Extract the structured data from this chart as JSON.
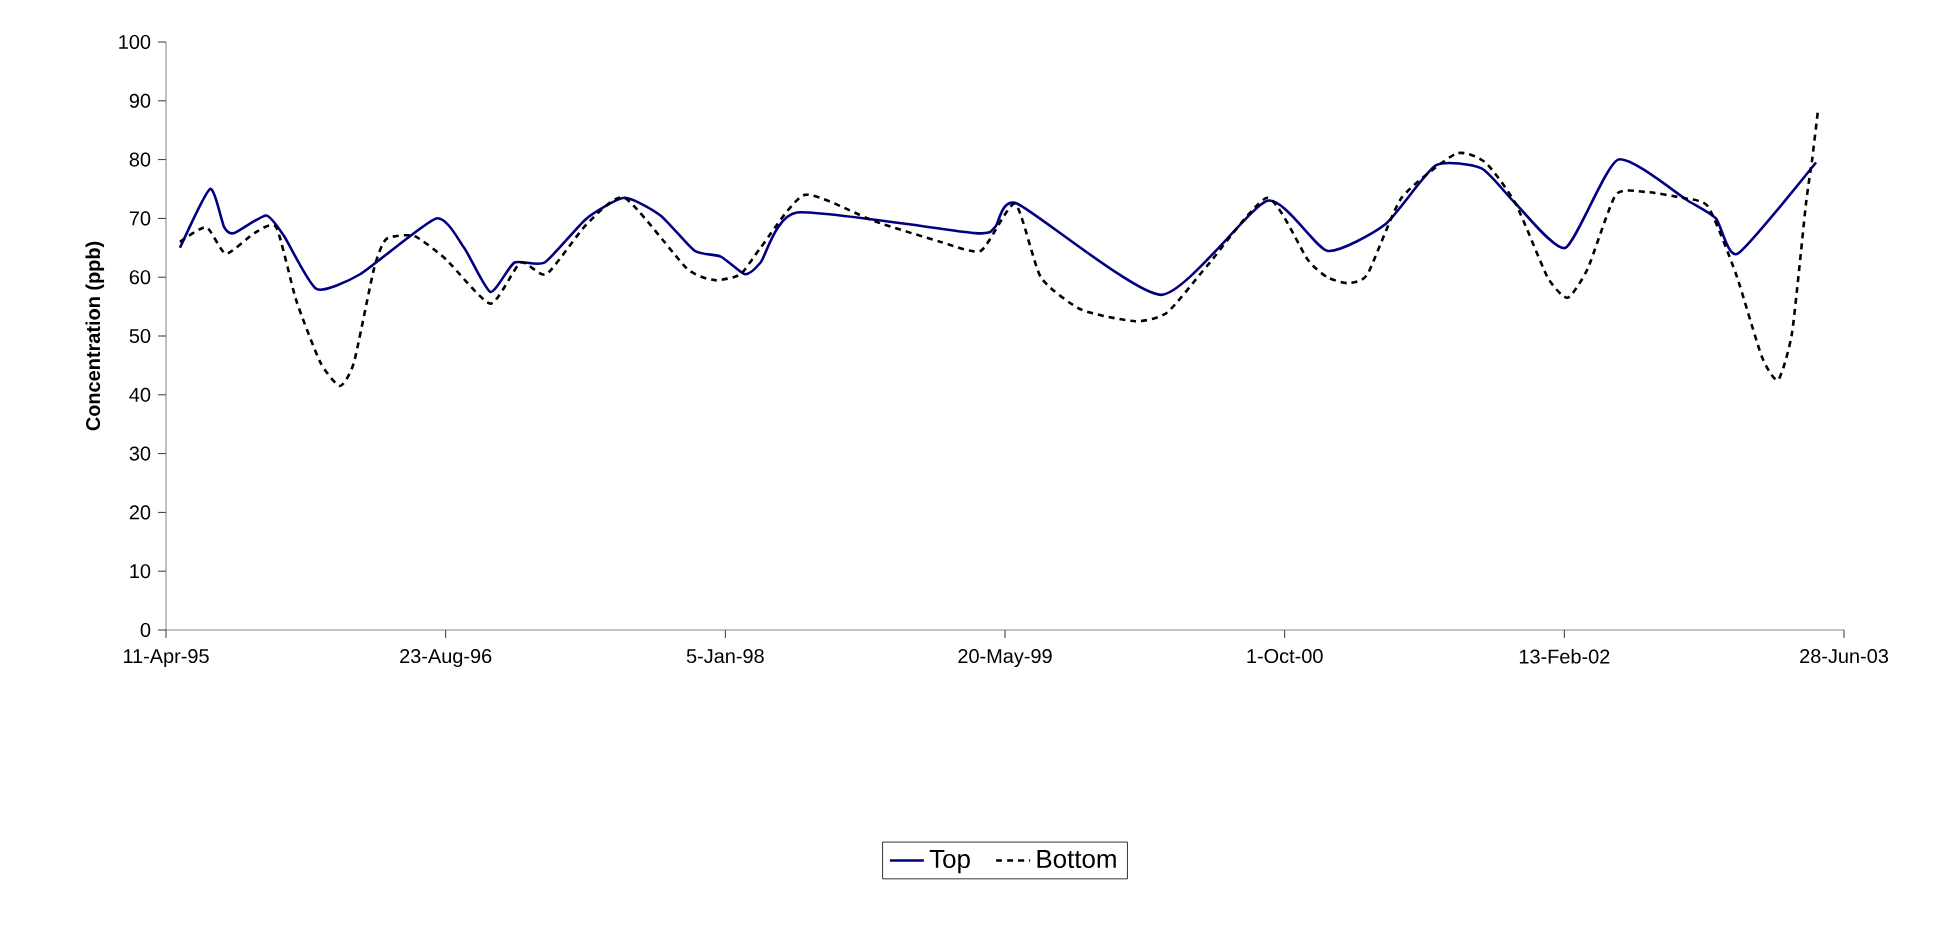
{
  "chart_data": {
    "type": "line",
    "ylabel": "Concentration (ppb)",
    "xlim": [
      "1995-04-11",
      "2003-06-28"
    ],
    "xticks": [
      {
        "value": "1995-04-11",
        "label": "11-Apr-95"
      },
      {
        "value": "1996-08-23",
        "label": "23-Aug-96"
      },
      {
        "value": "1998-01-05",
        "label": "5-Jan-98"
      },
      {
        "value": "1999-05-20",
        "label": "20-May-99"
      },
      {
        "value": "2000-10-01",
        "label": "1-Oct-00"
      },
      {
        "value": "2002-02-13",
        "label": "13-Feb-02"
      },
      {
        "value": "2003-06-28",
        "label": "28-Jun-03"
      }
    ],
    "ylim": [
      0,
      100
    ],
    "yticks": [
      0,
      10,
      20,
      30,
      40,
      50,
      60,
      70,
      80,
      90,
      100
    ],
    "grid": false,
    "legend": "bottom",
    "marker": "none",
    "series": [
      {
        "name": "Top",
        "color": "#000080",
        "line_style": "solid",
        "x": [
          "1995-05-06",
          "1995-06-29",
          "1995-07-24",
          "1995-08-11",
          "1995-10-07",
          "1995-11-08",
          "1996-01-05",
          "1996-03-23",
          "1996-08-06",
          "1996-09-25",
          "1996-11-11",
          "1996-12-24",
          "1997-02-16",
          "1997-05-02",
          "1997-07-09",
          "1997-09-11",
          "1997-11-11",
          "1997-12-28",
          "1998-02-09",
          "1998-03-09",
          "1998-05-13",
          "1999-03-27",
          "1999-05-02",
          "1999-06-11",
          "2000-02-23",
          "2000-08-31",
          "2000-12-16",
          "2001-03-30",
          "2001-06-28",
          "2001-09-18",
          "2001-11-18",
          "2002-02-15",
          "2002-05-20",
          "2002-09-22",
          "2002-11-11",
          "2002-12-20",
          "2003-05-09"
        ],
        "values": [
          65,
          75,
          68.5,
          67.5,
          70.5,
          67,
          58,
          60.5,
          70,
          65,
          57.5,
          62.5,
          62.5,
          70,
          73.5,
          70.5,
          64.5,
          63.5,
          60.5,
          62.5,
          71,
          67.5,
          68.5,
          72.5,
          57,
          73,
          64.5,
          69,
          79,
          78.5,
          72.5,
          65,
          80,
          73,
          70,
          64,
          79.5
        ]
      },
      {
        "name": "Bottom",
        "color": "#000000",
        "line_style": "dashed",
        "x": [
          "1995-05-06",
          "1995-06-22",
          "1995-07-27",
          "1995-09-16",
          "1995-10-25",
          "1995-11-30",
          "1996-01-12",
          "1996-02-16",
          "1996-03-12",
          "1996-04-17",
          "1996-05-09",
          "1996-06-28",
          "1996-08-24",
          "1996-11-11",
          "1997-01-04",
          "1997-02-19",
          "1997-05-02",
          "1997-07-09",
          "1997-10-28",
          "1997-12-17",
          "1998-02-01",
          "1998-03-09",
          "1998-05-27",
          "1998-09-29",
          "1999-01-25",
          "1999-04-07",
          "1999-06-07",
          "1999-07-23",
          "1999-10-03",
          "2000-01-08",
          "2000-03-05",
          "2000-05-16",
          "2000-08-31",
          "2000-11-11",
          "2000-12-16",
          "2001-01-21",
          "2001-02-26",
          "2001-04-28",
          "2001-08-03",
          "2001-09-25",
          "2001-11-18",
          "2002-01-14",
          "2002-02-19",
          "2002-03-27",
          "2002-05-16",
          "2002-07-09",
          "2002-09-11",
          "2002-10-28",
          "2002-12-17",
          "2003-02-01",
          "2003-03-02",
          "2003-03-27",
          "2003-04-21",
          "2003-05-02",
          "2003-05-12"
        ],
        "values": [
          66,
          68.5,
          64,
          67.5,
          68.5,
          56,
          45.5,
          41.5,
          45.5,
          61.5,
          66.5,
          67,
          63,
          55.5,
          62.5,
          60.5,
          69,
          73.5,
          61.5,
          59.5,
          60.5,
          65,
          74,
          69.5,
          66,
          64.5,
          72.5,
          60,
          54.5,
          52.5,
          54,
          62,
          73.5,
          63,
          60,
          59,
          60.5,
          73.5,
          81,
          79.5,
          72.5,
          60,
          56.5,
          61.5,
          74,
          74.5,
          73.5,
          72,
          60.5,
          46.5,
          42.5,
          50.5,
          72.5,
          80,
          88
        ]
      }
    ]
  }
}
